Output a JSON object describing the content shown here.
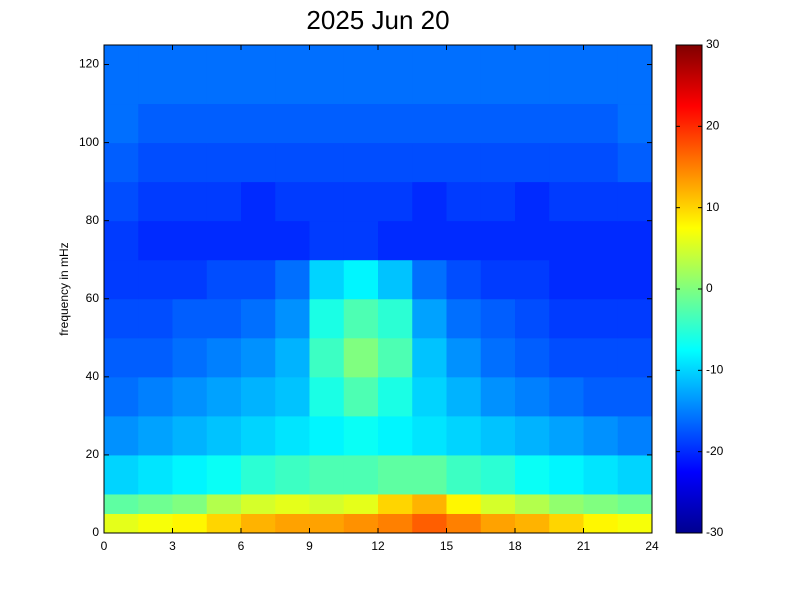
{
  "chart_data": {
    "type": "heatmap",
    "title": "2025 Jun 20",
    "y_label": "frequency in mHz",
    "colormap": "jet",
    "xlim": [
      0,
      24
    ],
    "xticks": [
      0,
      3,
      6,
      9,
      12,
      15,
      18,
      21,
      24
    ],
    "ylim": [
      0,
      125
    ],
    "yticks": [
      0,
      20,
      40,
      60,
      80,
      100,
      120
    ],
    "clim": [
      -30,
      30
    ],
    "cticks": [
      -30,
      -20,
      -10,
      0,
      10,
      20,
      30
    ],
    "xbins": [
      0,
      1.5,
      3,
      4.5,
      6,
      7.5,
      9,
      10.5,
      12,
      13.5,
      15,
      16.5,
      18,
      19.5,
      21,
      22.5,
      24
    ],
    "ybins": [
      0,
      5,
      10,
      20,
      30,
      40,
      50,
      60,
      70,
      80,
      90,
      100,
      110,
      125
    ],
    "z": [
      [
        6,
        7,
        8,
        10,
        12,
        13,
        13,
        14,
        15,
        17,
        15,
        13,
        12,
        10,
        8,
        7
      ],
      [
        -2,
        -1,
        0,
        3,
        5,
        6,
        5,
        6,
        10,
        12,
        8,
        5,
        3,
        1,
        0,
        -1
      ],
      [
        -10,
        -9,
        -8,
        -7,
        -5,
        -4,
        -3,
        -3,
        -2,
        -2,
        -4,
        -5,
        -7,
        -8,
        -9,
        -10
      ],
      [
        -14,
        -13,
        -12,
        -11,
        -10,
        -9,
        -8,
        -7,
        -8,
        -9,
        -10,
        -11,
        -12,
        -13,
        -14,
        -15
      ],
      [
        -16,
        -15,
        -14,
        -13,
        -12,
        -11,
        -6,
        -3,
        -6,
        -10,
        -12,
        -14,
        -15,
        -16,
        -17,
        -17
      ],
      [
        -17,
        -17,
        -16,
        -15,
        -14,
        -12,
        -4,
        0,
        -3,
        -11,
        -14,
        -16,
        -17,
        -18,
        -18,
        -18
      ],
      [
        -18,
        -18,
        -17,
        -17,
        -16,
        -14,
        -6,
        -3,
        -5,
        -13,
        -16,
        -17,
        -18,
        -19,
        -19,
        -19
      ],
      [
        -19,
        -19,
        -19,
        -18,
        -18,
        -16,
        -10,
        -8,
        -11,
        -16,
        -18,
        -19,
        -19,
        -20,
        -20,
        -20
      ],
      [
        -19,
        -20,
        -20,
        -20,
        -20,
        -20,
        -19,
        -19,
        -20,
        -20,
        -20,
        -20,
        -20,
        -20,
        -20,
        -20
      ],
      [
        -18,
        -19,
        -19,
        -19,
        -20,
        -19,
        -19,
        -19,
        -19,
        -20,
        -19,
        -19,
        -20,
        -19,
        -19,
        -19
      ],
      [
        -17,
        -18,
        -18,
        -18,
        -18,
        -18,
        -18,
        -18,
        -18,
        -18,
        -18,
        -18,
        -18,
        -18,
        -18,
        -17
      ],
      [
        -16,
        -17,
        -17,
        -17,
        -17,
        -17,
        -17,
        -17,
        -17,
        -17,
        -17,
        -17,
        -17,
        -17,
        -17,
        -16
      ],
      [
        -16,
        -16,
        -16,
        -16,
        -16,
        -16,
        -16,
        -16,
        -16,
        -16,
        -16,
        -16,
        -16,
        -16,
        -16,
        -16
      ]
    ]
  }
}
